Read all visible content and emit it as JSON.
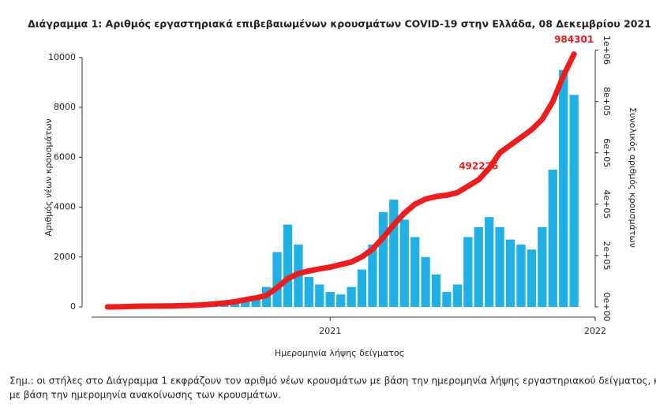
{
  "chart_data": {
    "type": "bar",
    "title": "Διάγραμμα 1: Αριθμός εργαστηριακά επιβεβαιωμένων κρουσμάτων COVID-19 στην Ελλάδα, 08 Δεκεμβρίου 2021",
    "x_label": "Ημερομηνία λήψης δείγματος",
    "y_label": "Αριθμός νέων κρουσμάτων",
    "y2_label": "Συνολικός αριθμός κρουσμάτων",
    "xlim": [
      2020.1,
      2022.0
    ],
    "xticks": [
      2021,
      2022
    ],
    "ylim": [
      0,
      10500
    ],
    "yticks": [
      0,
      2000,
      4000,
      6000,
      8000,
      10000
    ],
    "y2lim": [
      0,
      1020000
    ],
    "y2ticks": [
      {
        "value": 0,
        "label": "0e+00"
      },
      {
        "value": 200000,
        "label": "2e+05"
      },
      {
        "value": 400000,
        "label": "4e+05"
      },
      {
        "value": 600000,
        "label": "6e+05"
      },
      {
        "value": 800000,
        "label": "8e+05"
      },
      {
        "value": 1000000,
        "label": "1e+06"
      }
    ],
    "x": [
      2020.16,
      2020.2,
      2020.24,
      2020.28,
      2020.32,
      2020.36,
      2020.4,
      2020.44,
      2020.48,
      2020.52,
      2020.56,
      2020.6,
      2020.64,
      2020.68,
      2020.72,
      2020.76,
      2020.8,
      2020.84,
      2020.88,
      2020.92,
      2020.96,
      2021.0,
      2021.04,
      2021.08,
      2021.12,
      2021.16,
      2021.2,
      2021.24,
      2021.28,
      2021.32,
      2021.36,
      2021.4,
      2021.44,
      2021.48,
      2021.52,
      2021.56,
      2021.6,
      2021.64,
      2021.68,
      2021.72,
      2021.76,
      2021.8,
      2021.84,
      2021.88,
      2021.92
    ],
    "series": [
      {
        "type": "bar",
        "color": "#1fb0e6",
        "values": [
          5,
          10,
          20,
          15,
          10,
          10,
          15,
          20,
          30,
          100,
          150,
          200,
          250,
          300,
          350,
          800,
          2200,
          3300,
          2500,
          1200,
          900,
          600,
          500,
          800,
          1500,
          2500,
          3800,
          4300,
          3500,
          2800,
          2000,
          1300,
          600,
          900,
          2800,
          3200,
          3600,
          3200,
          2700,
          2500,
          2300,
          3200,
          5500,
          9500,
          8500
        ]
      },
      {
        "type": "line",
        "axis": "y2",
        "color": "#ee1c1c",
        "values": [
          100,
          500,
          1500,
          2500,
          3000,
          3500,
          4000,
          5000,
          6000,
          8000,
          11000,
          15000,
          20000,
          28000,
          35000,
          45000,
          75000,
          110000,
          130000,
          140000,
          148000,
          155000,
          165000,
          175000,
          195000,
          225000,
          270000,
          320000,
          365000,
          400000,
          420000,
          430000,
          435000,
          445000,
          470000,
          495000,
          540000,
          600000,
          630000,
          660000,
          690000,
          730000,
          800000,
          900000,
          984301
        ]
      }
    ],
    "annotations": [
      {
        "x": 2021.56,
        "value": 492226,
        "color": "#ee1c1c"
      },
      {
        "x": 2021.92,
        "value": 984301,
        "color": "#ee1c1c"
      }
    ],
    "note": [
      "Σημ.: οι στήλες στο Διάγραμμα 1 εκφράζουν τον αριθμό νέων κρουσμάτων με βάση την ημερομηνία λήψης εργαστηριακού δείγματος, και όχι",
      "με βάση την ημερομηνία ανακοίνωσης των κρουσμάτων."
    ]
  }
}
